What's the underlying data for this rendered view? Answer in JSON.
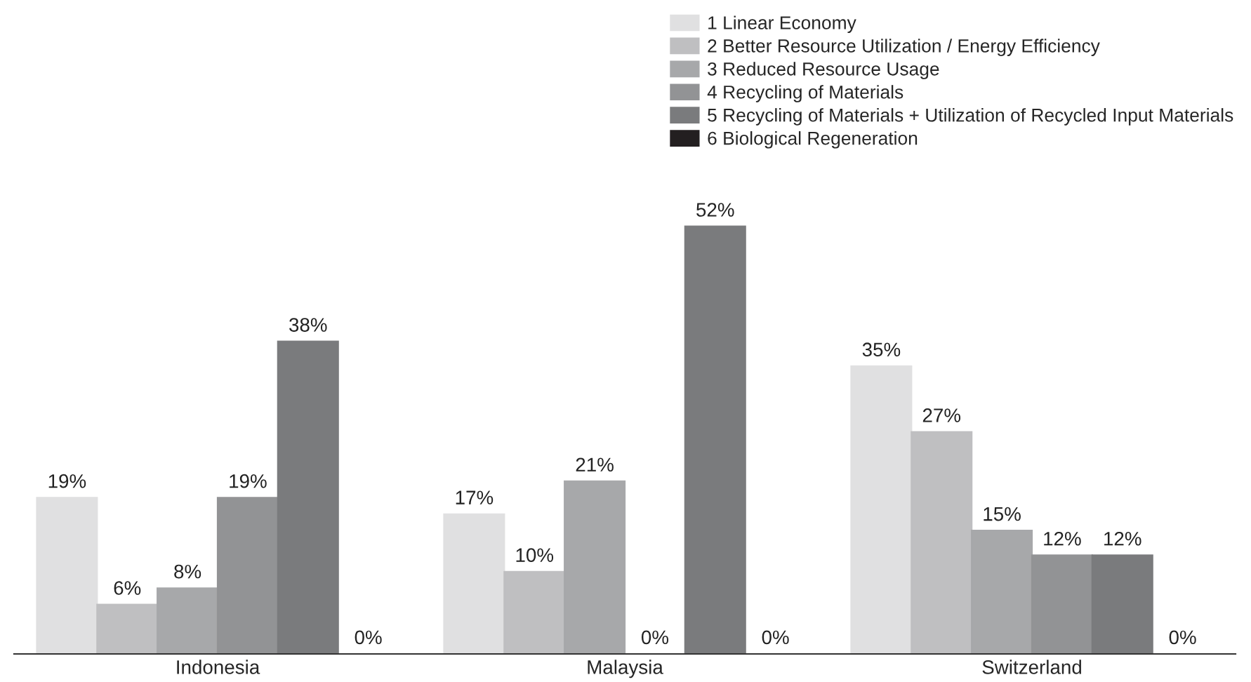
{
  "chart_data": {
    "type": "bar",
    "categories": [
      "Indonesia",
      "Malaysia",
      "Switzerland"
    ],
    "legend": "top right",
    "grid": false,
    "series": [
      {
        "name": "1 Linear Economy",
        "color": "#e0e0e1",
        "values": [
          19,
          17,
          35
        ],
        "value_labels": [
          "19%",
          "17%",
          "35%"
        ]
      },
      {
        "name": "2 Better Resource Utilization / Energy Efficiency",
        "color": "#bfbfc1",
        "values": [
          6,
          10,
          27
        ],
        "value_labels": [
          "6%",
          "10%",
          "27%"
        ]
      },
      {
        "name": "3 Reduced Resource Usage",
        "color": "#a7a8aa",
        "values": [
          8,
          21,
          15
        ],
        "value_labels": [
          "8%",
          "21%",
          "15%"
        ]
      },
      {
        "name": "4 Recycling of Materials",
        "color": "#929395",
        "values": [
          19,
          0,
          12
        ],
        "value_labels": [
          "19%",
          "0%",
          "12%"
        ]
      },
      {
        "name": "5 Recycling of Materials + Utilization of Recycled Input Materials",
        "color": "#7a7b7d",
        "values": [
          38,
          52,
          12
        ],
        "value_labels": [
          "38%",
          "52%",
          "12%"
        ]
      },
      {
        "name": "6 Biological Regeneration",
        "color": "#231f20",
        "values": [
          0,
          0,
          0
        ],
        "value_labels": [
          "0%",
          "0%",
          "0%"
        ]
      }
    ]
  }
}
